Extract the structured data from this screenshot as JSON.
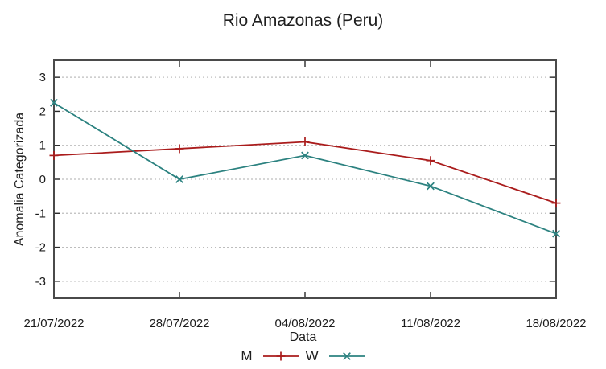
{
  "chart_data": {
    "type": "line",
    "title": "Rio Amazonas (Peru)",
    "xlabel": "Data",
    "ylabel": "Anomalia Categorizada",
    "categories": [
      "21/07/2022",
      "28/07/2022",
      "04/08/2022",
      "11/08/2022",
      "18/08/2022"
    ],
    "yticks": [
      -3,
      -2,
      -1,
      0,
      1,
      2,
      3
    ],
    "ylim": [
      -3.5,
      3.5
    ],
    "grid": true,
    "grid_style": "dotted-horizontal",
    "legend_position": "bottom-center",
    "series": [
      {
        "name": "M",
        "color": "#aa1c1c",
        "marker": "plus",
        "values": [
          0.7,
          0.9,
          1.1,
          0.55,
          -0.7
        ]
      },
      {
        "name": "W",
        "color": "#2c8280",
        "marker": "cross",
        "values": [
          2.25,
          0.0,
          0.7,
          -0.2,
          -1.6
        ]
      }
    ],
    "colors": {
      "axis_border": "#4a4a4a",
      "tick": "#2a2a2a",
      "grid": "#bdbdbd",
      "text": "#1c1c1c",
      "background": "#ffffff"
    }
  }
}
